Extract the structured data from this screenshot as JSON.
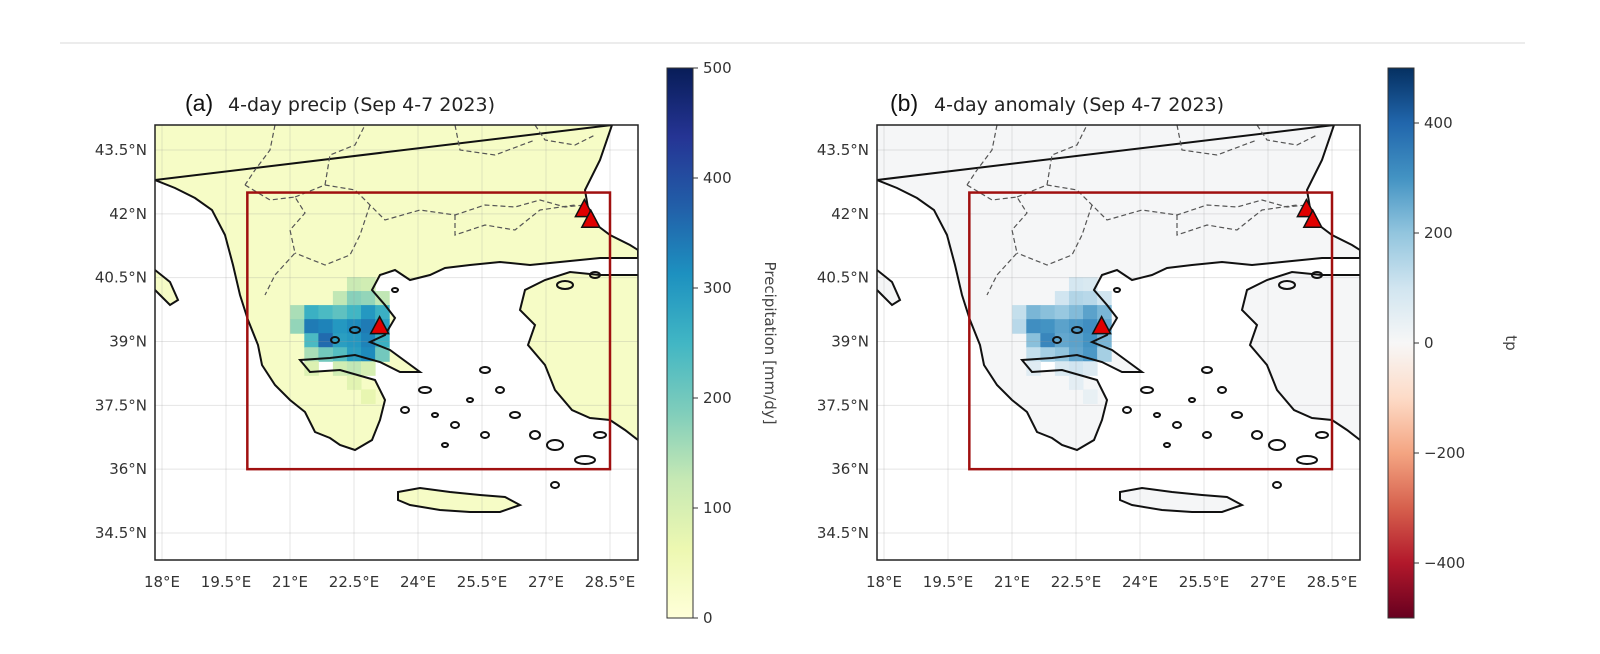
{
  "panels": [
    {
      "id": "a",
      "letter": "(a)",
      "title": "4-day precip (Sep 4-7 2023)",
      "colorbar": {
        "label": "Precipitation [mm/dy]",
        "range": [
          0,
          500
        ],
        "ticks": [
          0,
          100,
          200,
          300,
          400,
          500
        ],
        "tick_labels": [
          "0",
          "100",
          "200",
          "300",
          "400",
          "500"
        ],
        "colormap": [
          "#ffffd9",
          "#edf8b1",
          "#c7e9b4",
          "#7fcdbb",
          "#41b6c4",
          "#1d91c0",
          "#225ea8",
          "#253494",
          "#081d58"
        ]
      },
      "land_color": "#f4f9c6",
      "background_value": 30
    },
    {
      "id": "b",
      "letter": "(b)",
      "title": "4-day anomaly (Sep 4-7 2023)",
      "colorbar": {
        "label": "tp",
        "range": [
          -500,
          500
        ],
        "ticks": [
          -400,
          -200,
          0,
          200,
          400
        ],
        "tick_labels": [
          "−400",
          "−200",
          "0",
          "200",
          "400"
        ],
        "colormap": [
          "#67001f",
          "#b2182b",
          "#d6604d",
          "#f4a582",
          "#fddbc7",
          "#f7f7f7",
          "#d1e5f0",
          "#92c5de",
          "#4393c3",
          "#2166ac",
          "#053061"
        ]
      },
      "land_color": "#eef2f5",
      "background_value": 5
    }
  ],
  "chart_data": {
    "type": "heatmap",
    "lon_ticks": [
      18,
      19.5,
      21,
      22.5,
      24,
      25.5,
      27,
      28.5
    ],
    "lon_tick_labels": [
      "18°E",
      "19.5°E",
      "21°E",
      "22.5°E",
      "24°E",
      "25.5°E",
      "27°E",
      "28.5°E"
    ],
    "lat_ticks": [
      43.5,
      42,
      40.5,
      39,
      37.5,
      36,
      34.5
    ],
    "lat_tick_labels": [
      "43.5°N",
      "42°N",
      "40.5°N",
      "39°N",
      "37.5°N",
      "36°N",
      "34.5°N"
    ],
    "lon_range": [
      17.85,
      29.1
    ],
    "lat_range": [
      33.9,
      44.1
    ],
    "region_box": {
      "lon": [
        20,
        28.5
      ],
      "lat": [
        36,
        42.5
      ],
      "color": "#a01010"
    },
    "markers": [
      {
        "lon": 27.9,
        "lat": 42.1,
        "color": "#e00000"
      },
      {
        "lon": 28.05,
        "lat": 41.85,
        "color": "#e00000"
      },
      {
        "lon": 23.1,
        "lat": 39.35,
        "color": "#e00000"
      }
    ],
    "cell_size_deg": 0.33,
    "precip_cells": [
      [
        22.5,
        40.35,
        120
      ],
      [
        22.83,
        40.35,
        110
      ],
      [
        22.17,
        40.02,
        130
      ],
      [
        22.5,
        40.02,
        180
      ],
      [
        22.83,
        40.02,
        170
      ],
      [
        23.16,
        40.02,
        130
      ],
      [
        21.17,
        39.69,
        150
      ],
      [
        21.5,
        39.69,
        260
      ],
      [
        21.83,
        39.69,
        240
      ],
      [
        22.17,
        39.69,
        220
      ],
      [
        22.5,
        39.69,
        250
      ],
      [
        22.83,
        39.69,
        300
      ],
      [
        23.16,
        39.69,
        260
      ],
      [
        21.17,
        39.36,
        170
      ],
      [
        21.5,
        39.36,
        340
      ],
      [
        21.83,
        39.36,
        330
      ],
      [
        22.17,
        39.36,
        300
      ],
      [
        22.5,
        39.36,
        320
      ],
      [
        22.83,
        39.36,
        340
      ],
      [
        23.16,
        39.36,
        290
      ],
      [
        21.5,
        39.03,
        240
      ],
      [
        21.83,
        39.03,
        360
      ],
      [
        22.17,
        39.03,
        290
      ],
      [
        22.5,
        39.03,
        300
      ],
      [
        22.83,
        39.03,
        330
      ],
      [
        23.16,
        39.03,
        260
      ],
      [
        21.5,
        38.7,
        150
      ],
      [
        21.83,
        38.7,
        200
      ],
      [
        22.17,
        38.7,
        230
      ],
      [
        22.5,
        38.7,
        290
      ],
      [
        22.83,
        38.7,
        320
      ],
      [
        23.16,
        38.7,
        200
      ],
      [
        21.5,
        38.37,
        90
      ],
      [
        22.17,
        38.37,
        110
      ],
      [
        22.5,
        38.37,
        130
      ],
      [
        22.83,
        38.37,
        100
      ],
      [
        22.5,
        38.04,
        80
      ],
      [
        22.83,
        37.71,
        70
      ]
    ]
  }
}
